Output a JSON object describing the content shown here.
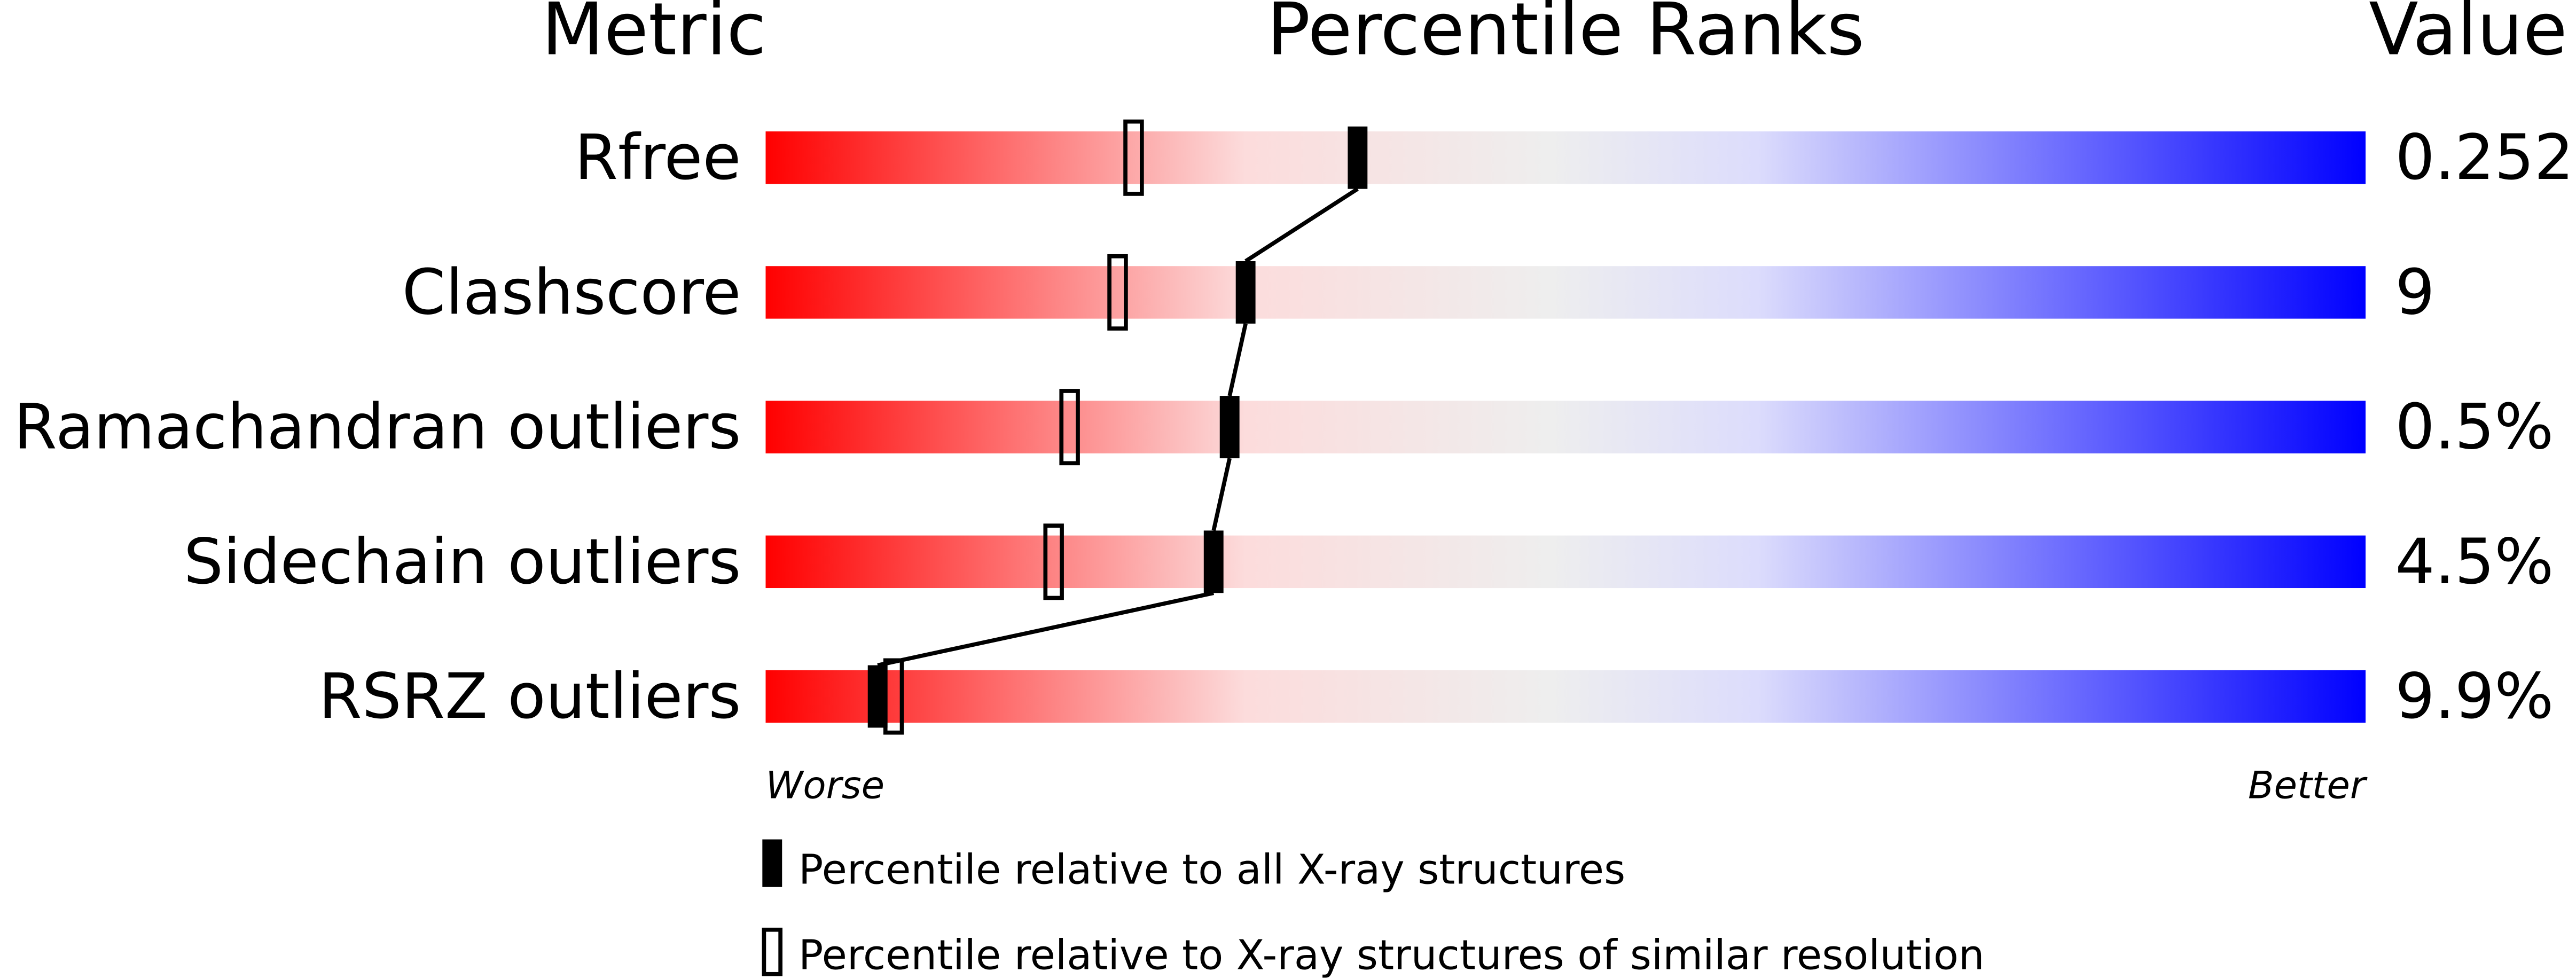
{
  "chart_data": {
    "type": "percentile-ranks",
    "headers": {
      "metric": "Metric",
      "ranks": "Percentile Ranks",
      "value": "Value"
    },
    "xlim": [
      0,
      100
    ],
    "axis_labels": {
      "left": "Worse",
      "right": "Better"
    },
    "gradient_colors": [
      "#ff0000",
      "#fcdcdc",
      "#eeeeee",
      "#dcdcfc",
      "#0000ff"
    ],
    "rows": [
      {
        "metric": "Rfree",
        "value": "0.252",
        "percentile_all": 37,
        "percentile_similar": 23
      },
      {
        "metric": "Clashscore",
        "value": "9",
        "percentile_all": 30,
        "percentile_similar": 22
      },
      {
        "metric": "Ramachandran outliers",
        "value": "0.5%",
        "percentile_all": 29,
        "percentile_similar": 19
      },
      {
        "metric": "Sidechain outliers",
        "value": "4.5%",
        "percentile_all": 28,
        "percentile_similar": 18
      },
      {
        "metric": "RSRZ outliers",
        "value": "9.9%",
        "percentile_all": 7,
        "percentile_similar": 8
      }
    ],
    "legend": [
      {
        "marker": "filled",
        "label": "Percentile relative to all X-ray structures"
      },
      {
        "marker": "open",
        "label": "Percentile relative to X-ray structures of similar resolution"
      }
    ]
  }
}
